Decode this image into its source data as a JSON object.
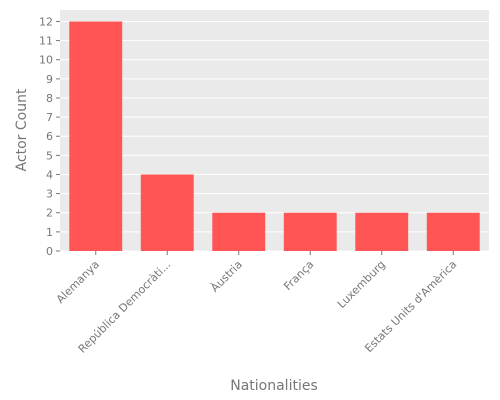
{
  "chart_data": {
    "type": "bar",
    "categories": [
      "Alemanya",
      "República Democràti...",
      "Àustria",
      "França",
      "Luxemburg",
      "Estats Units d'Amèrica"
    ],
    "values": [
      12,
      4,
      2,
      2,
      2,
      2
    ],
    "xlabel": "Nationalities",
    "ylabel": "Actor Count",
    "ylim": [
      0,
      12.6
    ],
    "yticks": [
      0,
      1,
      2,
      3,
      4,
      5,
      6,
      7,
      8,
      9,
      10,
      11,
      12
    ],
    "grid": true,
    "bar_color": "#ff5555",
    "plot_background": "#eaeaea"
  }
}
